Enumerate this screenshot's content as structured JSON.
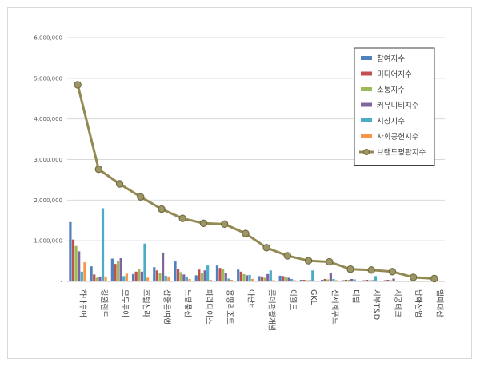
{
  "chart_data": {
    "type": "bar",
    "title": "",
    "xlabel": "",
    "ylabel": "",
    "ylim": [
      0,
      6000000
    ],
    "yticks": [
      "-",
      "1,000,000",
      "2,000,000",
      "3,000,000",
      "4,000,000",
      "5,000,000",
      "6,000,000"
    ],
    "ytick_values": [
      0,
      1000000,
      2000000,
      3000000,
      4000000,
      5000000,
      6000000
    ],
    "categories": [
      "하나투어",
      "강원랜드",
      "모두투어",
      "호텔신라",
      "참좋은여행",
      "노랑풍선",
      "파라다이스",
      "용평리조트",
      "아난티",
      "롯데관광개발",
      "이월드",
      "GKL",
      "신세계푸드",
      "디딤",
      "서부T&D",
      "시공테크",
      "남화산업",
      "엠피대산"
    ],
    "series": [
      {
        "name": "참여지수",
        "type": "bar",
        "color": "#4f81bd",
        "values": [
          1460000,
          370000,
          560000,
          180000,
          350000,
          490000,
          150000,
          390000,
          290000,
          130000,
          140000,
          40000,
          40000,
          30000,
          30000,
          30000,
          15000,
          10000
        ]
      },
      {
        "name": "미디어지수",
        "type": "bar",
        "color": "#c0504d",
        "values": [
          1030000,
          170000,
          430000,
          240000,
          270000,
          300000,
          290000,
          330000,
          240000,
          120000,
          130000,
          40000,
          60000,
          40000,
          40000,
          40000,
          20000,
          10000
        ]
      },
      {
        "name": "소통지수",
        "type": "bar",
        "color": "#9bbb59",
        "values": [
          870000,
          90000,
          490000,
          300000,
          210000,
          230000,
          200000,
          310000,
          180000,
          90000,
          110000,
          30000,
          50000,
          40000,
          30000,
          30000,
          10000,
          10000
        ]
      },
      {
        "name": "커뮤니티지수",
        "type": "bar",
        "color": "#8064a2",
        "values": [
          740000,
          120000,
          570000,
          240000,
          710000,
          170000,
          270000,
          210000,
          150000,
          180000,
          90000,
          30000,
          200000,
          60000,
          30000,
          70000,
          10000,
          10000
        ]
      },
      {
        "name": "시장지수",
        "type": "bar",
        "color": "#4bacc6",
        "values": [
          240000,
          1800000,
          130000,
          930000,
          140000,
          110000,
          390000,
          70000,
          160000,
          270000,
          60000,
          270000,
          60000,
          50000,
          130000,
          20000,
          10000,
          10000
        ]
      },
      {
        "name": "사회공헌지수",
        "type": "bar",
        "color": "#f79646",
        "values": [
          470000,
          120000,
          190000,
          90000,
          120000,
          60000,
          40000,
          40000,
          60000,
          30000,
          30000,
          20000,
          30000,
          20000,
          10000,
          10000,
          5000,
          5000
        ]
      },
      {
        "name": "브랜드평판지수",
        "type": "line",
        "color": "#938953",
        "values": [
          4840000,
          2760000,
          2400000,
          2080000,
          1780000,
          1550000,
          1430000,
          1410000,
          1180000,
          830000,
          630000,
          510000,
          480000,
          300000,
          280000,
          240000,
          100000,
          70000
        ]
      }
    ],
    "legend": "right-top",
    "grid": true
  }
}
